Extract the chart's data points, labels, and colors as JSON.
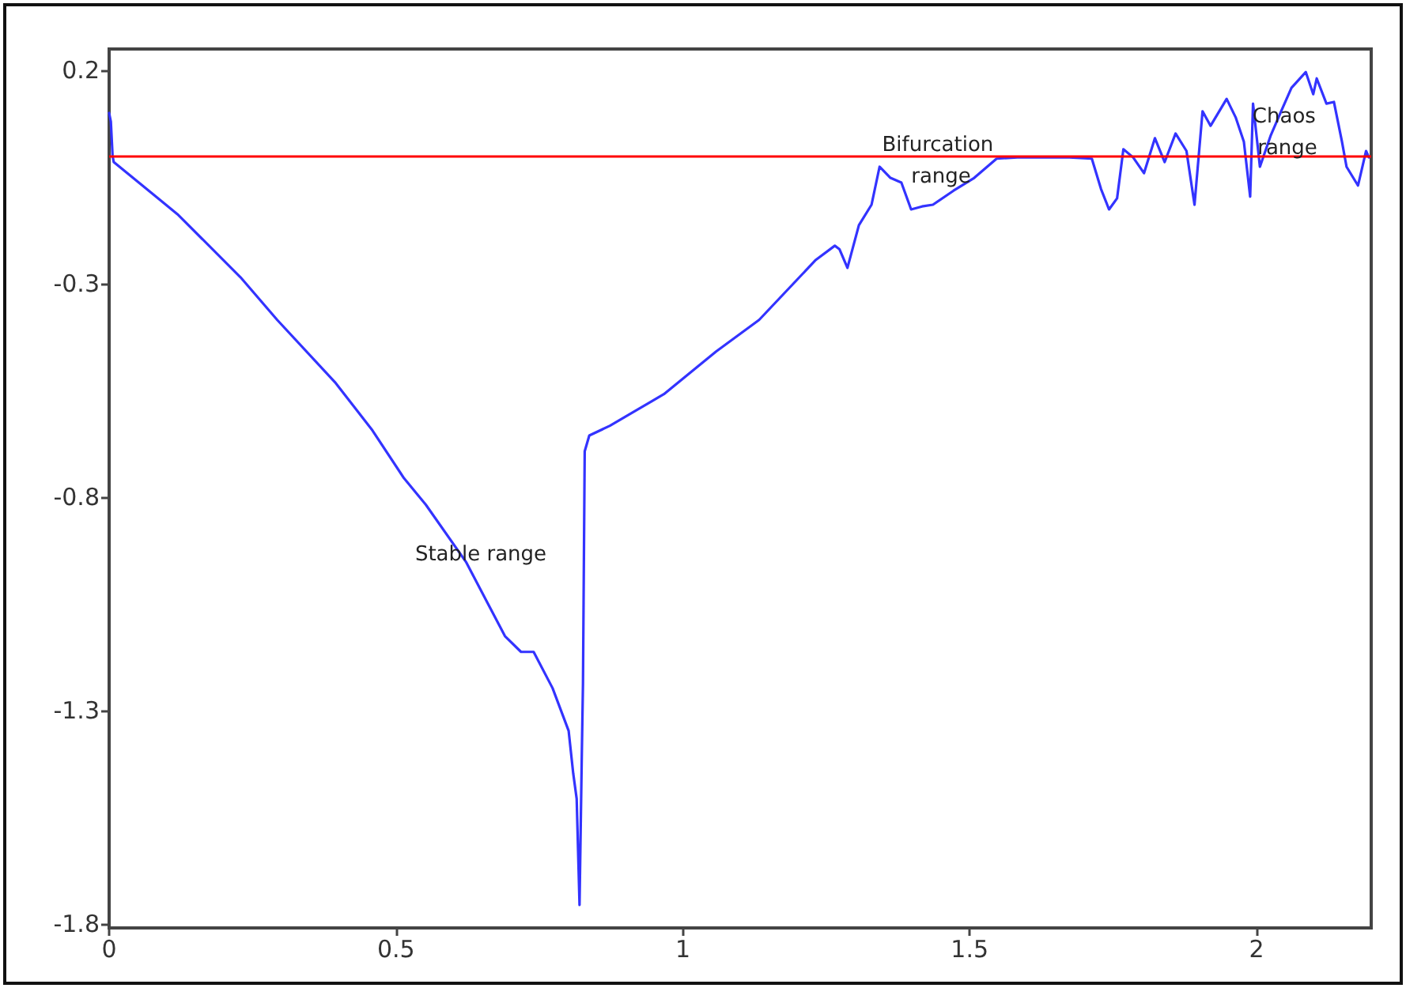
{
  "chart_data": {
    "type": "line",
    "xlim": [
      0,
      2.2
    ],
    "ylim": [
      -1.81,
      0.25
    ],
    "xticks": [
      0,
      0.5,
      1,
      1.5,
      2
    ],
    "yticks": [
      0.2,
      -0.3,
      -0.8,
      -1.3,
      -1.8
    ],
    "grid": false,
    "marker": "none",
    "line_style": "solid",
    "series": [
      {
        "color": "#3333ff",
        "x": [
          0,
          0.003,
          0.006,
          0.008,
          0.119,
          0.229,
          0.293,
          0.395,
          0.459,
          0.514,
          0.552,
          0.622,
          0.69,
          0.718,
          0.74,
          0.773,
          0.801,
          0.809,
          0.815,
          0.82,
          0.824,
          0.826,
          0.829,
          0.837,
          0.873,
          0.92,
          0.967,
          1.058,
          1.133,
          1.232,
          1.265,
          1.273,
          1.287,
          1.307,
          1.329,
          1.343,
          1.362,
          1.381,
          1.398,
          1.417,
          1.436,
          1.472,
          1.508,
          1.547,
          1.583,
          1.674,
          1.713,
          1.729,
          1.743,
          1.757,
          1.768,
          1.785,
          1.804,
          1.823,
          1.84,
          1.859,
          1.878,
          1.892,
          1.906,
          1.92,
          1.948,
          1.964,
          1.978,
          1.989,
          1.994,
          2.006,
          2.025,
          2.044,
          2.061,
          2.086,
          2.099,
          2.105,
          2.122,
          2.135,
          2.149,
          2.157,
          2.177,
          2.191,
          2.196
        ],
        "values": [
          0.1,
          0.08,
          0.0,
          -0.015,
          -0.137,
          -0.285,
          -0.385,
          -0.533,
          -0.644,
          -0.756,
          -0.818,
          -0.952,
          -1.126,
          -1.163,
          -1.163,
          -1.248,
          -1.348,
          -1.448,
          -1.507,
          -1.756,
          -1.4,
          -1.237,
          -0.693,
          -0.656,
          -0.633,
          -0.596,
          -0.559,
          -0.459,
          -0.385,
          -0.244,
          -0.211,
          -0.219,
          -0.263,
          -0.163,
          -0.115,
          -0.026,
          -0.052,
          -0.063,
          -0.126,
          -0.119,
          -0.115,
          -0.082,
          -0.052,
          -0.007,
          -0.004,
          -0.004,
          -0.007,
          -0.078,
          -0.126,
          -0.1,
          0.015,
          -0.004,
          -0.041,
          0.041,
          -0.015,
          0.052,
          0.011,
          -0.115,
          0.104,
          0.07,
          0.133,
          0.089,
          0.033,
          -0.096,
          0.122,
          -0.026,
          0.048,
          0.107,
          0.159,
          0.196,
          0.144,
          0.181,
          0.122,
          0.126,
          0.033,
          -0.026,
          -0.07,
          0.011,
          -0.004
        ]
      }
    ],
    "ref_lines": [
      {
        "axis": "y",
        "value": 0,
        "color": "#ff0000"
      }
    ],
    "annotations": [
      "Stable range",
      "Bifurcation range",
      "Chaos range"
    ]
  }
}
